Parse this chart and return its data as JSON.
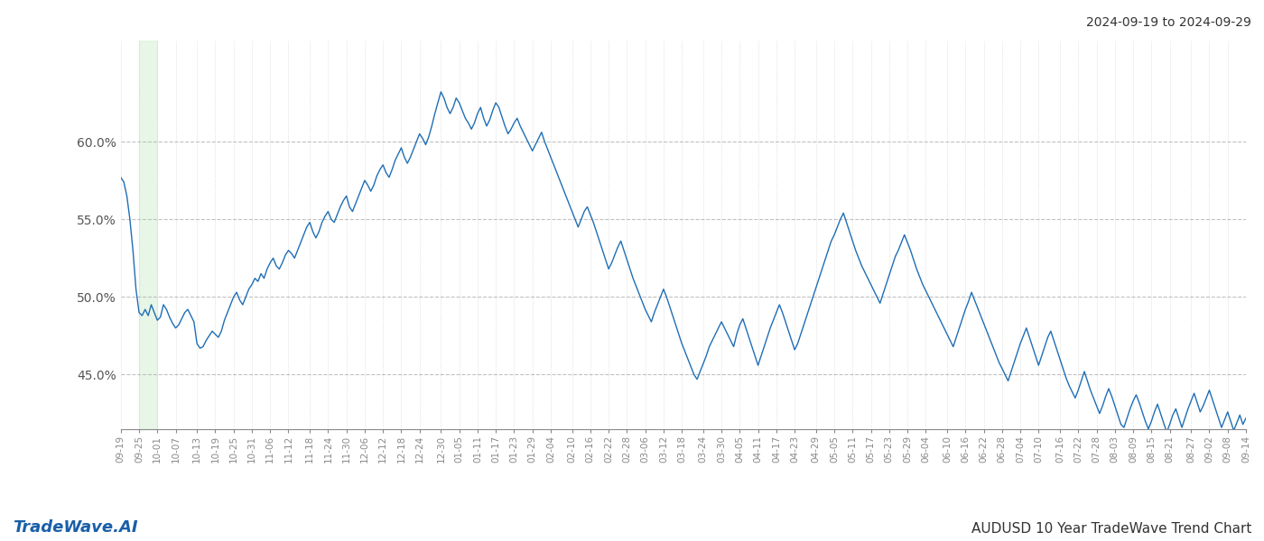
{
  "title_date_range": "2024-09-19 to 2024-09-29",
  "bottom_left_text": "TradeWave.AI",
  "bottom_right_text": "AUDUSD 10 Year TradeWave Trend Chart",
  "line_color": "#1f6eb5",
  "line_width": 1.0,
  "background_color": "#ffffff",
  "grid_color_h": "#bbbbbb",
  "grid_color_v": "#cccccc",
  "shade_color": "#d8f0d8",
  "shade_alpha": 0.6,
  "ylim": [
    0.415,
    0.665
  ],
  "yticks": [
    0.45,
    0.5,
    0.55,
    0.6
  ],
  "ytick_labels": [
    "45.0%",
    "50.0%",
    "55.0%",
    "60.0%"
  ],
  "x_labels": [
    "09-19",
    "09-25",
    "10-01",
    "10-07",
    "10-13",
    "10-19",
    "10-25",
    "10-31",
    "11-06",
    "11-12",
    "11-18",
    "11-24",
    "11-30",
    "12-06",
    "12-12",
    "12-18",
    "12-24",
    "12-30",
    "01-05",
    "01-11",
    "01-17",
    "01-23",
    "01-29",
    "02-04",
    "02-10",
    "02-16",
    "02-22",
    "02-28",
    "03-06",
    "03-12",
    "03-18",
    "03-24",
    "03-30",
    "04-05",
    "04-11",
    "04-17",
    "04-23",
    "04-29",
    "05-05",
    "05-11",
    "05-17",
    "05-23",
    "05-29",
    "06-04",
    "06-10",
    "06-16",
    "06-22",
    "06-28",
    "07-04",
    "07-10",
    "07-16",
    "07-22",
    "07-28",
    "08-03",
    "08-09",
    "08-15",
    "08-21",
    "08-27",
    "09-02",
    "09-08",
    "09-14"
  ],
  "shade_xstart_label_idx": 1,
  "shade_xend_label_idx": 2,
  "y_values": [
    0.577,
    0.574,
    0.565,
    0.55,
    0.53,
    0.505,
    0.49,
    0.488,
    0.492,
    0.488,
    0.495,
    0.49,
    0.485,
    0.487,
    0.495,
    0.492,
    0.487,
    0.483,
    0.48,
    0.482,
    0.486,
    0.49,
    0.492,
    0.488,
    0.484,
    0.47,
    0.467,
    0.468,
    0.472,
    0.475,
    0.478,
    0.476,
    0.474,
    0.478,
    0.485,
    0.49,
    0.495,
    0.5,
    0.503,
    0.498,
    0.495,
    0.5,
    0.505,
    0.508,
    0.512,
    0.51,
    0.515,
    0.512,
    0.518,
    0.522,
    0.525,
    0.52,
    0.518,
    0.522,
    0.527,
    0.53,
    0.528,
    0.525,
    0.53,
    0.535,
    0.54,
    0.545,
    0.548,
    0.542,
    0.538,
    0.542,
    0.548,
    0.552,
    0.555,
    0.55,
    0.548,
    0.553,
    0.558,
    0.562,
    0.565,
    0.558,
    0.555,
    0.56,
    0.565,
    0.57,
    0.575,
    0.572,
    0.568,
    0.572,
    0.578,
    0.582,
    0.585,
    0.58,
    0.577,
    0.582,
    0.588,
    0.592,
    0.596,
    0.59,
    0.586,
    0.59,
    0.595,
    0.6,
    0.605,
    0.602,
    0.598,
    0.603,
    0.61,
    0.618,
    0.625,
    0.632,
    0.628,
    0.622,
    0.618,
    0.622,
    0.628,
    0.625,
    0.62,
    0.615,
    0.612,
    0.608,
    0.612,
    0.618,
    0.622,
    0.615,
    0.61,
    0.614,
    0.62,
    0.625,
    0.622,
    0.616,
    0.61,
    0.605,
    0.608,
    0.612,
    0.615,
    0.61,
    0.606,
    0.602,
    0.598,
    0.594,
    0.598,
    0.602,
    0.606,
    0.6,
    0.595,
    0.59,
    0.585,
    0.58,
    0.575,
    0.57,
    0.565,
    0.56,
    0.555,
    0.55,
    0.545,
    0.55,
    0.555,
    0.558,
    0.553,
    0.548,
    0.542,
    0.536,
    0.53,
    0.524,
    0.518,
    0.522,
    0.527,
    0.532,
    0.536,
    0.53,
    0.524,
    0.518,
    0.512,
    0.507,
    0.502,
    0.497,
    0.492,
    0.488,
    0.484,
    0.49,
    0.495,
    0.5,
    0.505,
    0.5,
    0.494,
    0.488,
    0.482,
    0.476,
    0.47,
    0.465,
    0.46,
    0.455,
    0.45,
    0.447,
    0.452,
    0.457,
    0.462,
    0.468,
    0.472,
    0.476,
    0.48,
    0.484,
    0.48,
    0.476,
    0.472,
    0.468,
    0.476,
    0.482,
    0.486,
    0.48,
    0.474,
    0.468,
    0.462,
    0.456,
    0.462,
    0.468,
    0.474,
    0.48,
    0.485,
    0.49,
    0.495,
    0.49,
    0.484,
    0.478,
    0.472,
    0.466,
    0.47,
    0.476,
    0.482,
    0.488,
    0.494,
    0.5,
    0.506,
    0.512,
    0.518,
    0.524,
    0.53,
    0.536,
    0.54,
    0.545,
    0.55,
    0.554,
    0.548,
    0.542,
    0.536,
    0.53,
    0.525,
    0.52,
    0.516,
    0.512,
    0.508,
    0.504,
    0.5,
    0.496,
    0.502,
    0.508,
    0.514,
    0.52,
    0.526,
    0.53,
    0.535,
    0.54,
    0.535,
    0.53,
    0.524,
    0.518,
    0.513,
    0.508,
    0.504,
    0.5,
    0.496,
    0.492,
    0.488,
    0.484,
    0.48,
    0.476,
    0.472,
    0.468,
    0.474,
    0.48,
    0.486,
    0.492,
    0.497,
    0.503,
    0.498,
    0.493,
    0.488,
    0.483,
    0.478,
    0.473,
    0.468,
    0.463,
    0.458,
    0.454,
    0.45,
    0.446,
    0.452,
    0.458,
    0.464,
    0.47,
    0.475,
    0.48,
    0.474,
    0.468,
    0.462,
    0.456,
    0.462,
    0.468,
    0.474,
    0.478,
    0.472,
    0.466,
    0.46,
    0.454,
    0.448,
    0.443,
    0.439,
    0.435,
    0.44,
    0.446,
    0.452,
    0.446,
    0.44,
    0.435,
    0.43,
    0.425,
    0.43,
    0.436,
    0.441,
    0.436,
    0.43,
    0.424,
    0.418,
    0.416,
    0.422,
    0.428,
    0.433,
    0.437,
    0.432,
    0.426,
    0.42,
    0.415,
    0.42,
    0.426,
    0.431,
    0.425,
    0.419,
    0.413,
    0.418,
    0.424,
    0.428,
    0.422,
    0.416,
    0.422,
    0.428,
    0.433,
    0.438,
    0.432,
    0.426,
    0.43,
    0.435,
    0.44,
    0.434,
    0.428,
    0.422,
    0.416,
    0.421,
    0.426,
    0.42,
    0.414,
    0.419,
    0.424,
    0.418,
    0.422
  ]
}
